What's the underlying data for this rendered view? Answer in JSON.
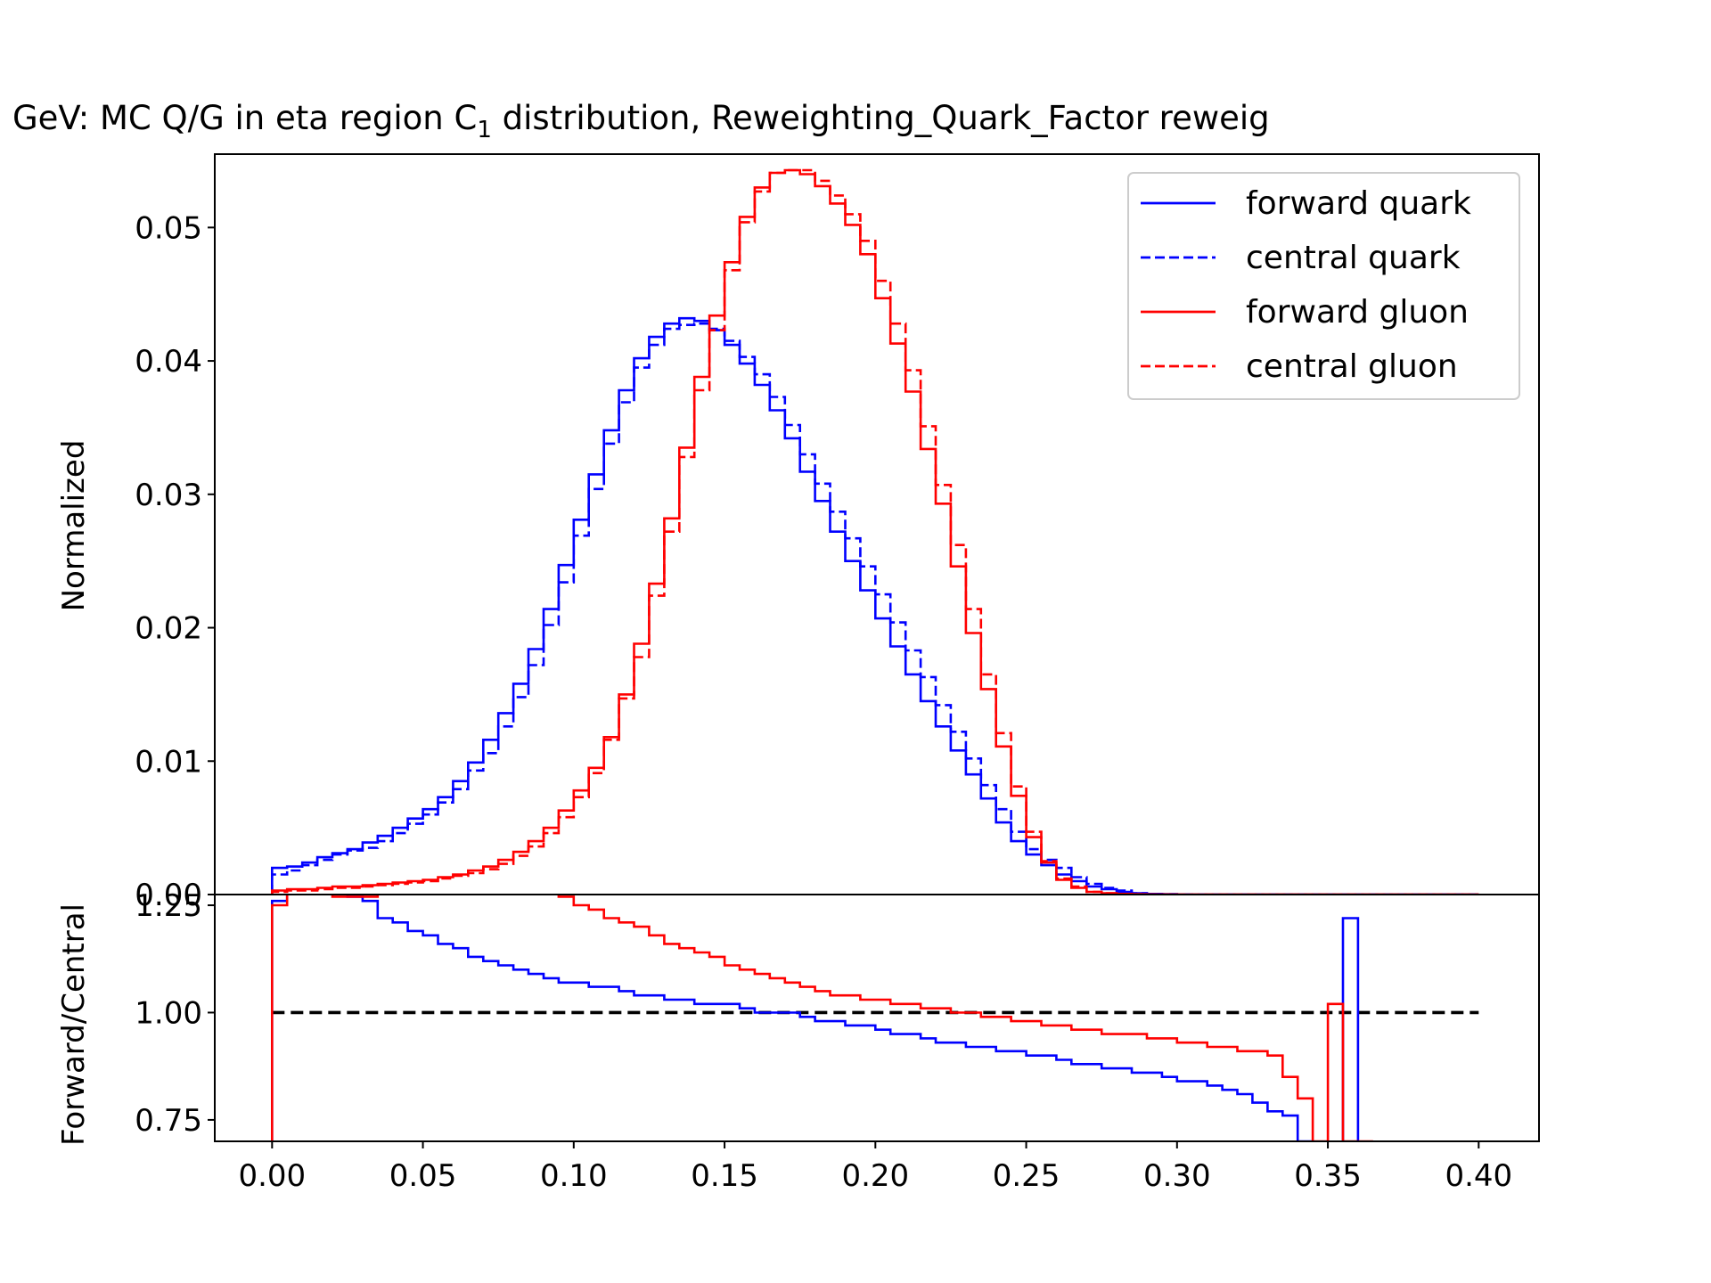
{
  "chart_data": {
    "type": "line",
    "title": "GeV: MC Q/G in eta region C",
    "title_subscript": "1",
    "title_suffix": " distribution, Reweighting_Quark_Factor reweig",
    "ylabel": "Normalized",
    "ratio_ylabel": "Forward/Central",
    "xlim": [
      -0.019,
      0.42
    ],
    "ylim": [
      0,
      0.0555
    ],
    "ratio_ylim": [
      0.7,
      1.275
    ],
    "xticks": [
      "0.00",
      "0.05",
      "0.10",
      "0.15",
      "0.20",
      "0.25",
      "0.30",
      "0.35",
      "0.40"
    ],
    "yticks": [
      "0.00",
      "0.01",
      "0.02",
      "0.03",
      "0.04",
      "0.05"
    ],
    "ratio_yticks": [
      "0.75",
      "1.00",
      "1.25"
    ],
    "legend_position": "top-right",
    "reference_line": 1.0,
    "bins": {
      "start": 0.0,
      "width": 0.005,
      "count": 80
    },
    "series": [
      {
        "name": "forward quark",
        "color": "#0000ff",
        "style": "solid",
        "values": [
          0.002,
          0.0021,
          0.0024,
          0.0028,
          0.0031,
          0.0034,
          0.0039,
          0.0044,
          0.005,
          0.0057,
          0.0064,
          0.0073,
          0.0085,
          0.0099,
          0.0116,
          0.0136,
          0.0158,
          0.0184,
          0.0214,
          0.0247,
          0.0281,
          0.0315,
          0.0348,
          0.0378,
          0.0402,
          0.0418,
          0.0428,
          0.0432,
          0.043,
          0.0423,
          0.0412,
          0.0398,
          0.0382,
          0.0363,
          0.0342,
          0.0317,
          0.0295,
          0.0272,
          0.025,
          0.0228,
          0.0207,
          0.0186,
          0.0165,
          0.0145,
          0.0126,
          0.0108,
          0.009,
          0.0072,
          0.0054,
          0.004,
          0.003,
          0.0022,
          0.0015,
          0.001,
          0.0006,
          0.0004,
          0.0002,
          0.0001,
          5e-05,
          3e-05,
          1e-05,
          0,
          0,
          0,
          0,
          0,
          0,
          0,
          0,
          0,
          0,
          0,
          0,
          0,
          0,
          0,
          0,
          0,
          0,
          0
        ]
      },
      {
        "name": "central quark",
        "color": "#0000ff",
        "style": "dashed",
        "values": [
          0.0015,
          0.0018,
          0.0022,
          0.0026,
          0.003,
          0.0033,
          0.0035,
          0.004,
          0.0046,
          0.0053,
          0.006,
          0.0069,
          0.0079,
          0.0093,
          0.0106,
          0.0126,
          0.0148,
          0.0172,
          0.0202,
          0.0234,
          0.0269,
          0.0304,
          0.0338,
          0.0369,
          0.0395,
          0.0412,
          0.0424,
          0.0427,
          0.0428,
          0.0424,
          0.0415,
          0.0403,
          0.039,
          0.0373,
          0.0352,
          0.033,
          0.0308,
          0.0287,
          0.0267,
          0.0246,
          0.0225,
          0.0204,
          0.0183,
          0.0163,
          0.0142,
          0.0122,
          0.0102,
          0.0082,
          0.0064,
          0.0047,
          0.0034,
          0.0026,
          0.002,
          0.0013,
          0.0008,
          0.0005,
          0.0003,
          0.0001,
          5e-05,
          2e-05,
          1e-05,
          0,
          0,
          0,
          0,
          0,
          0,
          0,
          0,
          0,
          0,
          0,
          0,
          0,
          0,
          0,
          0,
          0,
          0,
          0
        ]
      },
      {
        "name": "forward gluon",
        "color": "#ff0000",
        "style": "solid",
        "values": [
          0.0003,
          0.0004,
          0.0004,
          0.0005,
          0.0006,
          0.0006,
          0.0007,
          0.0008,
          0.0009,
          0.001,
          0.0011,
          0.0013,
          0.0015,
          0.0018,
          0.0021,
          0.0026,
          0.0032,
          0.004,
          0.005,
          0.0063,
          0.0078,
          0.0095,
          0.0118,
          0.015,
          0.0188,
          0.0233,
          0.0282,
          0.0335,
          0.0388,
          0.0434,
          0.0474,
          0.0508,
          0.053,
          0.0541,
          0.0543,
          0.054,
          0.0531,
          0.0518,
          0.0502,
          0.048,
          0.0447,
          0.0413,
          0.0377,
          0.0334,
          0.0293,
          0.0246,
          0.0196,
          0.0154,
          0.0111,
          0.0074,
          0.0043,
          0.0024,
          0.0011,
          0.0005,
          0.0002,
          0.0001,
          5e-05,
          2e-05,
          1e-05,
          5e-06,
          3e-06,
          2e-06,
          1e-06,
          5e-07,
          3e-07,
          2e-07,
          1e-07,
          5e-08,
          0,
          0,
          0,
          0,
          0,
          0,
          0,
          0,
          0,
          0,
          0,
          0
        ]
      },
      {
        "name": "central gluon",
        "color": "#ff0000",
        "style": "dashed",
        "values": [
          0.0002,
          0.0003,
          0.0003,
          0.0004,
          0.0005,
          0.0005,
          0.0006,
          0.0007,
          0.0008,
          0.0009,
          0.001,
          0.0012,
          0.0014,
          0.0016,
          0.0019,
          0.0023,
          0.0029,
          0.0036,
          0.0046,
          0.0058,
          0.0073,
          0.0091,
          0.0116,
          0.0147,
          0.0178,
          0.0224,
          0.0272,
          0.0328,
          0.0378,
          0.0423,
          0.0468,
          0.0504,
          0.0527,
          0.0541,
          0.0543,
          0.0543,
          0.0535,
          0.0524,
          0.051,
          0.049,
          0.046,
          0.0428,
          0.0393,
          0.0351,
          0.0307,
          0.0262,
          0.0214,
          0.0165,
          0.0121,
          0.0081,
          0.0047,
          0.0025,
          0.0012,
          0.0006,
          0.0002,
          0.0001,
          5e-05,
          2e-05,
          1e-05,
          5e-06,
          3e-06,
          2e-06,
          1e-06,
          5e-07,
          3e-07,
          2e-07,
          1e-07,
          5e-08,
          0,
          0,
          0,
          0,
          0,
          0,
          0,
          0,
          0,
          0,
          0,
          0
        ]
      }
    ],
    "ratios": [
      {
        "name": "quark ratio",
        "color": "#0000ff",
        "values": [
          1.26,
          1.3,
          1.3,
          1.3,
          1.29,
          1.27,
          1.26,
          1.22,
          1.21,
          1.19,
          1.18,
          1.16,
          1.15,
          1.13,
          1.12,
          1.11,
          1.1,
          1.09,
          1.08,
          1.07,
          1.07,
          1.06,
          1.06,
          1.05,
          1.04,
          1.04,
          1.03,
          1.03,
          1.02,
          1.02,
          1.02,
          1.01,
          1.0,
          1.0,
          1.0,
          0.99,
          0.98,
          0.98,
          0.97,
          0.97,
          0.96,
          0.95,
          0.95,
          0.94,
          0.93,
          0.93,
          0.92,
          0.92,
          0.91,
          0.91,
          0.9,
          0.9,
          0.89,
          0.88,
          0.88,
          0.87,
          0.87,
          0.86,
          0.86,
          0.85,
          0.84,
          0.84,
          0.83,
          0.82,
          0.81,
          0.79,
          0.77,
          0.76,
          0.7,
          null,
          null,
          1.22,
          null,
          null,
          null,
          null,
          null,
          null,
          null,
          null
        ]
      },
      {
        "name": "gluon ratio",
        "color": "#ff0000",
        "values": [
          1.25,
          1.29,
          1.29,
          1.29,
          1.27,
          1.27,
          1.27,
          1.29,
          1.29,
          1.29,
          1.29,
          1.29,
          1.28,
          1.28,
          1.29,
          1.29,
          1.28,
          1.28,
          1.28,
          1.27,
          1.25,
          1.24,
          1.22,
          1.21,
          1.2,
          1.18,
          1.16,
          1.15,
          1.14,
          1.13,
          1.11,
          1.1,
          1.09,
          1.08,
          1.07,
          1.06,
          1.05,
          1.04,
          1.04,
          1.03,
          1.03,
          1.02,
          1.02,
          1.01,
          1.01,
          1.0,
          1.0,
          0.99,
          0.99,
          0.98,
          0.98,
          0.97,
          0.97,
          0.96,
          0.96,
          0.95,
          0.95,
          0.95,
          0.94,
          0.94,
          0.93,
          0.93,
          0.92,
          0.92,
          0.91,
          0.91,
          0.9,
          0.85,
          0.8,
          0.7,
          1.02,
          0.7,
          0.7,
          null,
          null,
          null,
          null,
          null,
          null,
          null
        ]
      }
    ]
  }
}
